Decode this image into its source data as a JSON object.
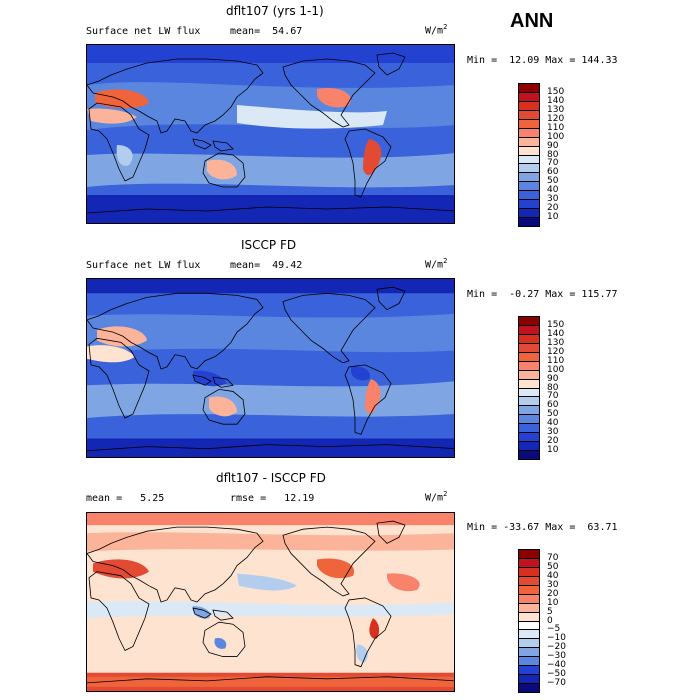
{
  "season": "ANN",
  "panels": [
    {
      "title": "dflt107 (yrs 1-1)",
      "left": "Surface net LW flux",
      "right": "mean=  54.67",
      "units": "W/m",
      "units_sup": "2",
      "minmax": "Min =  12.09 Max = 144.33",
      "levels": [
        "150",
        "140",
        "130",
        "120",
        "110",
        "100",
        "90",
        "80",
        "70",
        "60",
        "50",
        "40",
        "30",
        "20",
        "10"
      ],
      "colors": [
        "#8b0000",
        "#c1121f",
        "#d7301f",
        "#e34a33",
        "#f0643c",
        "#f8836a",
        "#fbb49a",
        "#fde3d0",
        "#dbe9f6",
        "#b3cdee",
        "#7fa6e3",
        "#5a86e0",
        "#3a63db",
        "#2342d1",
        "#1426b4",
        "#0a0a7a"
      ],
      "style": "model"
    },
    {
      "title": "ISCCP FD",
      "left": "Surface net LW flux",
      "right": "mean=  49.42",
      "units": "W/m",
      "units_sup": "2",
      "minmax": "Min =  -0.27 Max = 115.77",
      "levels": [
        "150",
        "140",
        "130",
        "120",
        "110",
        "100",
        "90",
        "80",
        "70",
        "60",
        "50",
        "40",
        "30",
        "20",
        "10"
      ],
      "colors": [
        "#8b0000",
        "#c1121f",
        "#d7301f",
        "#e34a33",
        "#f0643c",
        "#f8836a",
        "#fbb49a",
        "#fde3d0",
        "#dbe9f6",
        "#b3cdee",
        "#7fa6e3",
        "#5a86e0",
        "#3a63db",
        "#2342d1",
        "#1426b4",
        "#0a0a7a"
      ],
      "style": "obs"
    },
    {
      "title": "dflt107 - ISCCP FD",
      "left": "mean =   5.25",
      "right": "rmse =   12.19",
      "units": "W/m",
      "units_sup": "2",
      "minmax": "Min = -33.67 Max =  63.71",
      "levels": [
        "70",
        "50",
        "40",
        "30",
        "20",
        "10",
        "5",
        "0",
        "−5",
        "−10",
        "−20",
        "−30",
        "−40",
        "−50",
        "−70"
      ],
      "colors": [
        "#8b0000",
        "#c1121f",
        "#d7301f",
        "#e34a33",
        "#f0643c",
        "#f8836a",
        "#fbb49a",
        "#fde3d0",
        "#ffffff",
        "#dbe9f6",
        "#b3cdee",
        "#7fa6e3",
        "#5a86e0",
        "#2342d1",
        "#1426b4",
        "#0a0a7a"
      ],
      "style": "diff"
    }
  ]
}
